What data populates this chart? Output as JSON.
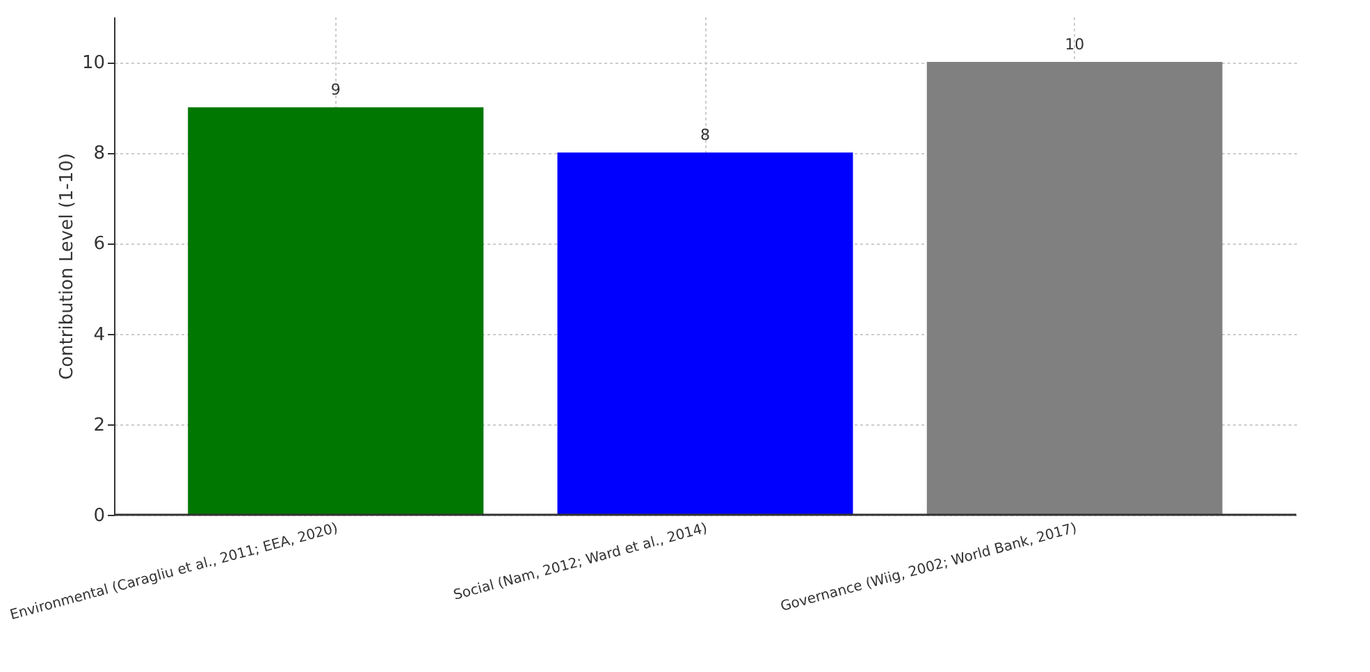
{
  "chart_data": {
    "type": "bar",
    "ylabel": "Contribution Level (1-10)",
    "categories": [
      "Environmental (Caragliu et al., 2011; EEA, 2020)",
      "Social (Nam, 2012; Ward et al., 2014)",
      "Governance (Wiig, 2002; World Bank, 2017)"
    ],
    "values": [
      9,
      8,
      10
    ],
    "colors": [
      "#007700",
      "#0000ff",
      "#808080"
    ],
    "ylim": [
      0,
      11
    ],
    "yticks": [
      0,
      2,
      4,
      6,
      8,
      10
    ],
    "grid": true,
    "data_labels": true
  }
}
